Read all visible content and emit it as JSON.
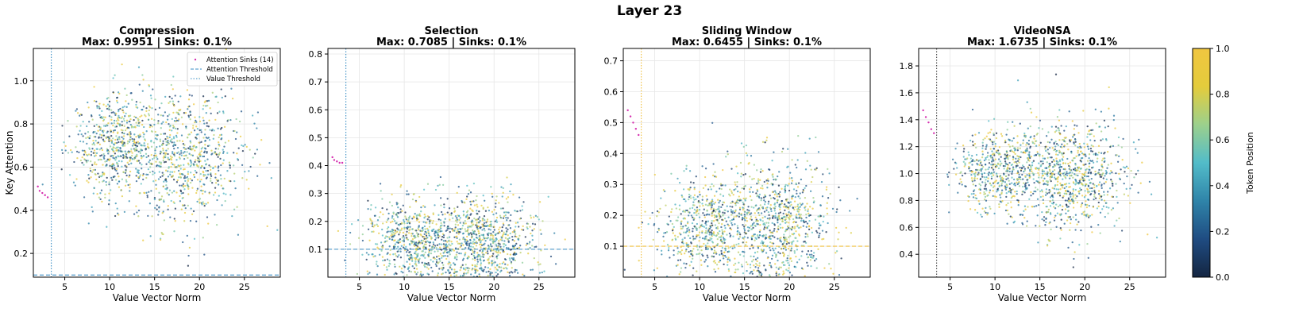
{
  "suptitle": "Layer 23",
  "colors": {
    "dots_blue": "#3a8ec4",
    "threshold_yellow": "#f0c040",
    "sink_magenta": "#d62fb0"
  },
  "colorbar": {
    "label": "Token Position",
    "ticks": [
      "0.0",
      "0.2",
      "0.4",
      "0.6",
      "0.8",
      "1.0"
    ],
    "colormap": [
      "#142541",
      "#1f4c82",
      "#2f84a9",
      "#52bcc9",
      "#9cd08c",
      "#e4cc3c",
      "#f0c640"
    ]
  },
  "legend": {
    "items": [
      {
        "label": "Attention Sinks (14)",
        "style": "dot"
      },
      {
        "label": "Attention Threshold",
        "style": "dashed"
      },
      {
        "label": "Value Threshold",
        "style": "dotted"
      }
    ]
  },
  "chart_data": [
    {
      "type": "scatter",
      "title": "Compression",
      "subtitle": "Max: 0.9951 | Sinks: 0.1%",
      "xlabel": "Value Vector Norm",
      "ylabel": "Key Attention",
      "xlim": [
        1.5,
        29
      ],
      "ylim": [
        0.09,
        1.15
      ],
      "xticks": [
        5,
        10,
        15,
        20,
        25
      ],
      "yticks": [
        0.2,
        0.4,
        0.6,
        0.8,
        1.0
      ],
      "attention_threshold": 0.1,
      "value_threshold": 3.5,
      "max": 0.9951,
      "sinks_pct": 0.1,
      "clusters": [
        {
          "cx": 10.5,
          "cy": 0.7,
          "sx": 2.4,
          "sy": 0.12,
          "weight": 0.45
        },
        {
          "cx": 18.5,
          "cy": 0.65,
          "sx": 3.2,
          "sy": 0.15,
          "weight": 0.55
        }
      ],
      "sinks": [
        [
          2.0,
          0.51
        ],
        [
          2.2,
          0.49
        ],
        [
          2.5,
          0.48
        ],
        [
          2.8,
          0.47
        ],
        [
          3.1,
          0.46
        ]
      ],
      "has_legend": true
    },
    {
      "type": "scatter",
      "title": "Selection",
      "subtitle": "Max: 0.7085 | Sinks: 0.1%",
      "xlabel": "Value Vector Norm",
      "ylabel": "",
      "xlim": [
        1.5,
        29
      ],
      "ylim": [
        0.0,
        0.82
      ],
      "xticks": [
        5,
        10,
        15,
        20,
        25
      ],
      "yticks": [
        0.1,
        0.2,
        0.3,
        0.4,
        0.5,
        0.6,
        0.7,
        0.8
      ],
      "attention_threshold": 0.1,
      "value_threshold": 3.5,
      "max": 0.7085,
      "sinks_pct": 0.1,
      "clusters": [
        {
          "cx": 10.5,
          "cy": 0.14,
          "sx": 2.6,
          "sy": 0.07,
          "weight": 0.4
        },
        {
          "cx": 18.5,
          "cy": 0.13,
          "sx": 3.0,
          "sy": 0.08,
          "weight": 0.6
        }
      ],
      "sinks": [
        [
          2.0,
          0.43
        ],
        [
          2.2,
          0.42
        ],
        [
          2.5,
          0.415
        ],
        [
          2.8,
          0.41
        ],
        [
          3.1,
          0.41
        ]
      ],
      "has_legend": false
    },
    {
      "type": "scatter",
      "title": "Sliding Window",
      "subtitle": "Max: 0.6455 | Sinks: 0.1%",
      "xlabel": "Value Vector Norm",
      "ylabel": "",
      "xlim": [
        1.5,
        29
      ],
      "ylim": [
        0.0,
        0.74
      ],
      "xticks": [
        5,
        10,
        15,
        20,
        25
      ],
      "yticks": [
        0.1,
        0.2,
        0.3,
        0.4,
        0.5,
        0.6,
        0.7
      ],
      "attention_threshold": 0.1,
      "value_threshold": 3.5,
      "max": 0.6455,
      "sinks_pct": 0.1,
      "clusters": [
        {
          "cx": 10.5,
          "cy": 0.16,
          "sx": 2.6,
          "sy": 0.08,
          "weight": 0.4
        },
        {
          "cx": 18.5,
          "cy": 0.18,
          "sx": 3.0,
          "sy": 0.1,
          "weight": 0.6
        }
      ],
      "sinks": [
        [
          2.0,
          0.54
        ],
        [
          2.3,
          0.52
        ],
        [
          2.6,
          0.5
        ],
        [
          2.9,
          0.48
        ],
        [
          3.2,
          0.46
        ]
      ],
      "has_legend": false
    },
    {
      "type": "scatter",
      "title": "VideoNSA",
      "subtitle": "Max: 1.6735 | Sinks: 0.1%",
      "xlabel": "Value Vector Norm",
      "ylabel": "",
      "xlim": [
        1.5,
        29
      ],
      "ylim": [
        0.23,
        1.93
      ],
      "xticks": [
        5,
        10,
        15,
        20,
        25
      ],
      "yticks": [
        0.4,
        0.6,
        0.8,
        1.0,
        1.2,
        1.4,
        1.6,
        1.8
      ],
      "attention_threshold": null,
      "value_threshold": 3.5,
      "max": 1.6735,
      "sinks_pct": 0.1,
      "clusters": [
        {
          "cx": 10.5,
          "cy": 1.02,
          "sx": 2.4,
          "sy": 0.15,
          "weight": 0.4
        },
        {
          "cx": 18.5,
          "cy": 0.98,
          "sx": 3.0,
          "sy": 0.2,
          "weight": 0.6
        }
      ],
      "sinks": [
        [
          2.0,
          1.47
        ],
        [
          2.3,
          1.42
        ],
        [
          2.6,
          1.38
        ],
        [
          2.9,
          1.33
        ],
        [
          3.2,
          1.3
        ]
      ],
      "has_legend": false
    }
  ]
}
